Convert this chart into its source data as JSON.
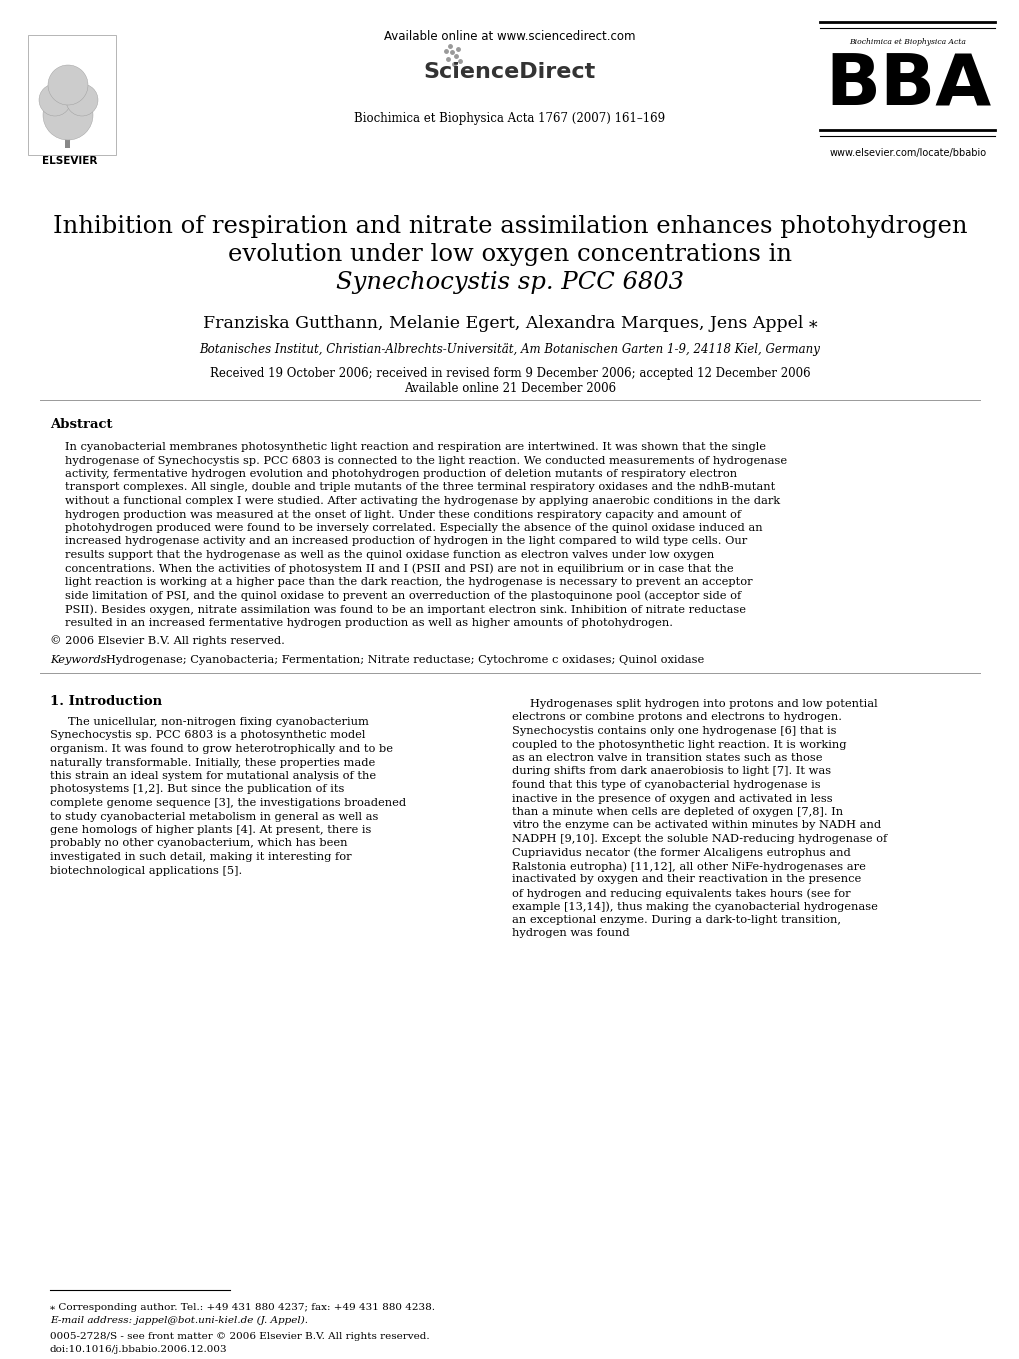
{
  "bg_color": "#ffffff",
  "header_journal": "Biochimica et Biophysica Acta 1767 (2007) 161–169",
  "available_online": "Available online at www.sciencedirect.com",
  "sciencedirect_text": "ScienceDirect",
  "bba_url": "www.elsevier.com/locate/bbabio",
  "elsevier_text": "ELSEVIER",
  "title_line1": "Inhibition of respiration and nitrate assimilation enhances photohydrogen",
  "title_line2": "evolution under low oxygen concentrations in",
  "title_line3_normal": "sp. PCC 6803",
  "title_line3_italic": "Synechocystis",
  "authors": "Franziska Gutthann, Melanie Egert, Alexandra Marques, Jens Appel ⁎",
  "affiliation": "Botanisches Institut, Christian-Albrechts-Universität, Am Botanischen Garten 1-9, 24118 Kiel, Germany",
  "received": "Received 19 October 2006; received in revised form 9 December 2006; accepted 12 December 2006",
  "available": "Available online 21 December 2006",
  "abstract_title": "Abstract",
  "abstract_text": "In cyanobacterial membranes photosynthetic light reaction and respiration are intertwined. It was shown that the single hydrogenase of Synechocystis sp. PCC 6803 is connected to the light reaction. We conducted measurements of hydrogenase activity, fermentative hydrogen evolution and photohydrogen production of deletion mutants of respiratory electron transport complexes. All single, double and triple mutants of the three terminal respiratory oxidases and the ndhB-mutant without a functional complex I were studied. After activating the hydrogenase by applying anaerobic conditions in the dark hydrogen production was measured at the onset of light. Under these conditions respiratory capacity and amount of photohydrogen produced were found to be inversely correlated. Especially the absence of the quinol oxidase induced an increased hydrogenase activity and an increased production of hydrogen in the light compared to wild type cells. Our results support that the hydrogenase as well as the quinol oxidase function as electron valves under low oxygen concentrations. When the activities of photosystem II and I (PSII and PSI) are not in equilibrium or in case that the light reaction is working at a higher pace than the dark reaction, the hydrogenase is necessary to prevent an acceptor side limitation of PSI, and the quinol oxidase to prevent an overreduction of the plastoquinone pool (acceptor side of PSII). Besides oxygen, nitrate assimilation was found to be an important electron sink. Inhibition of nitrate reductase resulted in an increased fermentative hydrogen production as well as higher amounts of photohydrogen.",
  "copyright": "© 2006 Elsevier B.V. All rights reserved.",
  "keywords_label": "Keywords:",
  "keywords_text": "Hydrogenase; Cyanobacteria; Fermentation; Nitrate reductase; Cytochrome c oxidases; Quinol oxidase",
  "intro_title": "1. Introduction",
  "intro_col1": "The unicellular, non-nitrogen fixing cyanobacterium Synechocystis sp. PCC 6803 is a photosynthetic model organism. It was found to grow heterotrophically and to be naturally transformable. Initially, these properties made this strain an ideal system for mutational analysis of the photosystems [1,2]. But since the publication of its complete genome sequence [3], the investigations broadened to study cyanobacterial metabolism in general as well as gene homologs of higher plants [4]. At present, there is probably no other cyanobacterium, which has been investigated in such detail, making it interesting for biotechnological applications [5].",
  "intro_col2": "Hydrogenases split hydrogen into protons and low potential electrons or combine protons and electrons to hydrogen. Synechocystis contains only one hydrogenase [6] that is coupled to the photosynthetic light reaction. It is working as an electron valve in transition states such as those during shifts from dark anaerobiosis to light [7]. It was found that this type of cyanobacterial hydrogenase is inactive in the presence of oxygen and activated in less than a minute when cells are depleted of oxygen [7,8]. In vitro the enzyme can be activated within minutes by NADH and NADPH [9,10]. Except the soluble NAD-reducing hydrogenase of Cupriavidus necator (the former Alcaligens eutrophus and Ralstonia eutropha) [11,12], all other NiFe-hydrogenases are inactivated by oxygen and their reactivation in the presence of hydrogen and reducing equivalents takes hours (see for example [13,14]), thus making the cyanobacterial hydrogenase an exceptional enzyme. During a dark-to-light transition, hydrogen was found",
  "footnote_star": "⁎ Corresponding author. Tel.: +49 431 880 4237; fax: +49 431 880 4238.",
  "footnote_email": "E-mail address: jappel@bot.uni-kiel.de (J. Appel).",
  "footnote_issn": "0005-2728/S - see front matter © 2006 Elsevier B.V. All rights reserved.",
  "footnote_doi": "doi:10.1016/j.bbabio.2006.12.003"
}
